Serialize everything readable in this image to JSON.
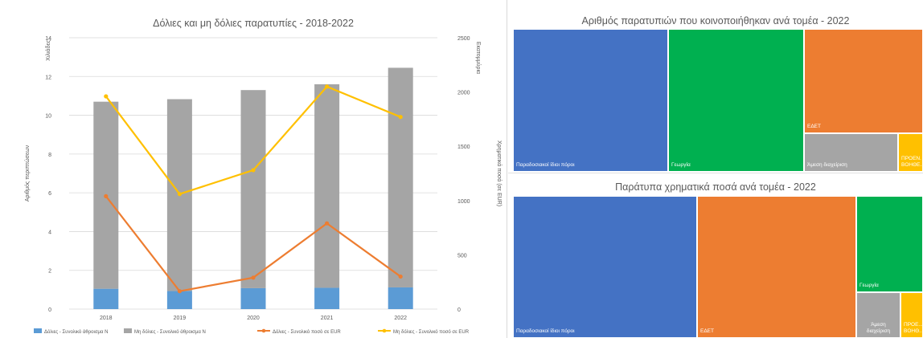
{
  "colors": {
    "fraud_bar": "#5b9bd5",
    "nonfraud_bar": "#a5a5a5",
    "fraud_line": "#ed7d31",
    "nonfraud_line": "#ffc000",
    "grid": "#d9d9d9"
  },
  "chart_data": [
    {
      "type": "bar",
      "title": "Δόλιες και μη δόλιες παρατυπίες - 2018-2022",
      "categories": [
        "2018",
        "2019",
        "2020",
        "2021",
        "2022"
      ],
      "stacked_bars": true,
      "ylabel": "Αριθμός περιπτώσεων",
      "ylabel_unit": "Χιλιάδες",
      "ylim": [
        0,
        14
      ],
      "yticks": [
        "0",
        "2",
        "4",
        "6",
        "8",
        "10",
        "12",
        "14"
      ],
      "y2label": "Χρηματικά ποσά (σε EUR)",
      "y2label_unit": "Εκατομμύρια",
      "y2lim": [
        0,
        2500
      ],
      "y2ticks": [
        "0",
        "500",
        "1000",
        "1500",
        "2000",
        "2500"
      ],
      "grid": true,
      "legend_position": "bottom",
      "series": [
        {
          "name": "Δόλιες - Συνολικό άθροισμα Ν",
          "kind": "bar",
          "axis": "left",
          "color": "#5b9bd5",
          "values": [
            1.05,
            0.93,
            1.08,
            1.1,
            1.12
          ]
        },
        {
          "name": "Μη δόλιες - Συνολικό άθροισμα Ν",
          "kind": "bar",
          "axis": "left",
          "color": "#a5a5a5",
          "values": [
            9.65,
            9.9,
            10.22,
            10.5,
            11.33
          ]
        },
        {
          "name": "Δόλιες - Συνολικό ποσό σε EUR",
          "kind": "line",
          "axis": "right",
          "color": "#ed7d31",
          "values": [
            1040,
            165,
            290,
            790,
            300
          ]
        },
        {
          "name": "Μη δόλιες - Συνολικό ποσό σε EUR",
          "kind": "line",
          "axis": "right",
          "color": "#ffc000",
          "values": [
            1960,
            1060,
            1280,
            2050,
            1770
          ]
        }
      ]
    },
    {
      "type": "treemap",
      "title": "Αριθμός παρατυπιών που κοινοποιήθηκαν ανά τομέα - 2022",
      "tiles": [
        {
          "label": "Παραδοσιακοί ίδιοι πόροι",
          "color": "#4472c4"
        },
        {
          "label": "Γεωργία",
          "color": "#00b050"
        },
        {
          "label": "ΕΔΕΤ",
          "color": "#ed7d31"
        },
        {
          "label": "Άμεση διαχείριση",
          "color": "#a5a5a5"
        },
        {
          "label": "ΠΡΟΕΝ. ΒΟΗΘΕ...",
          "color": "#ffc000"
        }
      ]
    },
    {
      "type": "treemap",
      "title": "Παράτυπα χρηματικά ποσά ανά τομέα - 2022",
      "tiles": [
        {
          "label": "Παραδοσιακοί ίδιοι πόροι",
          "color": "#4472c4"
        },
        {
          "label": "ΕΔΕΤ",
          "color": "#ed7d31"
        },
        {
          "label": "Γεωργία",
          "color": "#00b050"
        },
        {
          "label": "Άμεση\nδιαχείριση",
          "color": "#a5a5a5"
        },
        {
          "label": "ΠΡΟΕ...\nΒΟΗΘ...",
          "color": "#ffc000"
        }
      ]
    }
  ]
}
